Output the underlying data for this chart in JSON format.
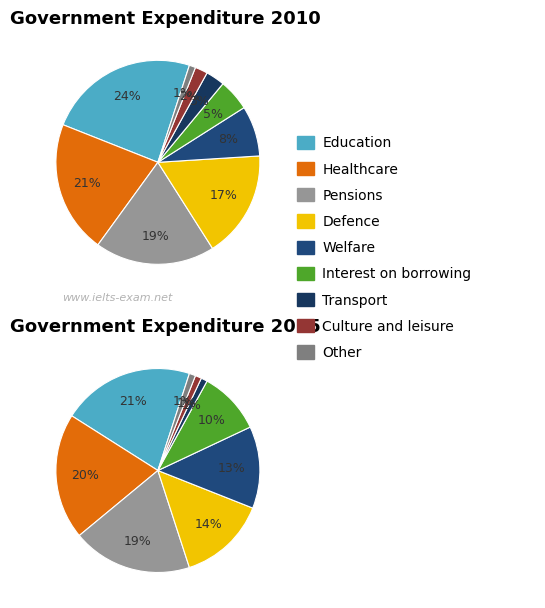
{
  "chart1_title": "Government Expenditure 2010",
  "chart2_title": "Government Expenditure 2015",
  "categories": [
    "Education",
    "Healthcare",
    "Pensions",
    "Defence",
    "Welfare",
    "Interest on borrowing",
    "Transport",
    "Culture and leisure",
    "Other"
  ],
  "colors": [
    "#4BACC6",
    "#E36C09",
    "#969696",
    "#F2C500",
    "#1F497D",
    "#4EA72A",
    "#17375E",
    "#943634",
    "#7F7F7F"
  ],
  "values_2010": [
    24,
    21,
    19,
    17,
    8,
    5,
    3,
    2,
    1
  ],
  "values_2015": [
    21,
    20,
    19,
    14,
    13,
    10,
    1,
    1,
    1
  ],
  "watermark": "www.ielts-exam.net",
  "title_fontsize": 13,
  "label_fontsize": 9,
  "legend_fontsize": 10
}
